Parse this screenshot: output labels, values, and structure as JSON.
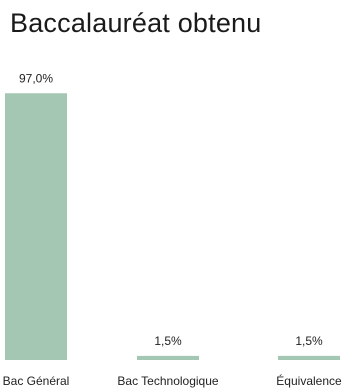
{
  "chart_data": {
    "type": "bar",
    "title": "Baccalauréat obtenu",
    "categories": [
      "Bac Général",
      "Bac Technologique",
      "Équivalence"
    ],
    "values": [
      97.0,
      1.5,
      1.5
    ],
    "value_labels": [
      "97,0%",
      "1,5%",
      "1,5%"
    ],
    "unit": "%",
    "ylim": [
      0,
      100
    ],
    "grid": false,
    "legend": "none",
    "bar_color": "#a3c7b3"
  }
}
